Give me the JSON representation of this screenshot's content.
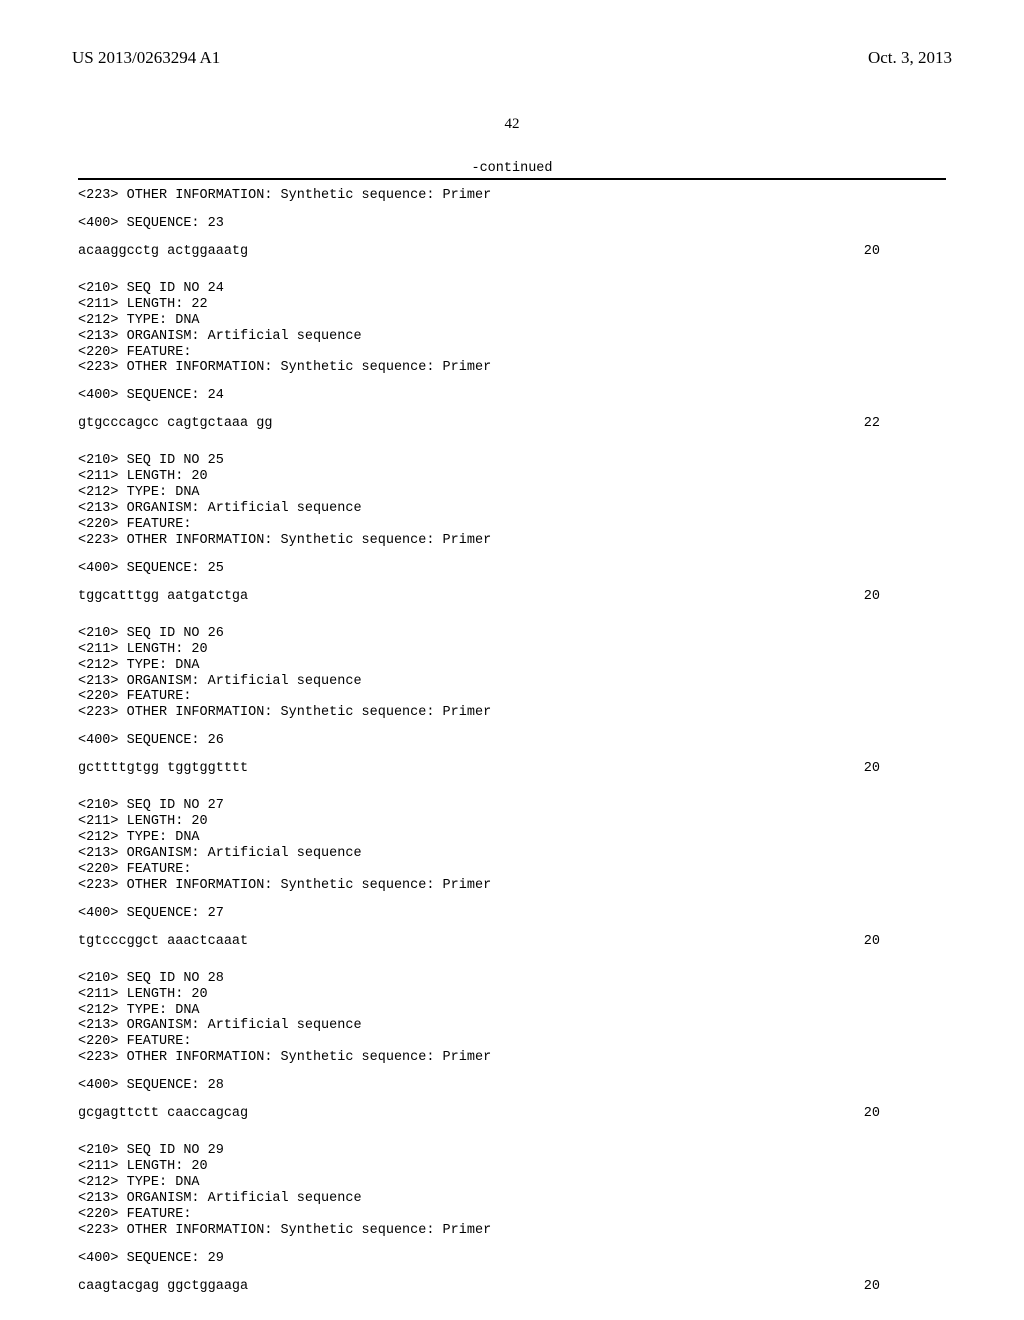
{
  "header": {
    "left": "US 2013/0263294 A1",
    "right": "Oct. 3, 2013"
  },
  "page_number": "42",
  "continued_label": "-continued",
  "intro_lines": [
    "<223> OTHER INFORMATION: Synthetic sequence: Primer",
    "",
    "<400> SEQUENCE: 23"
  ],
  "intro_seq": {
    "text": "acaaggcctg actggaaatg",
    "len": "20"
  },
  "entries": [
    {
      "meta": [
        "<210> SEQ ID NO 24",
        "<211> LENGTH: 22",
        "<212> TYPE: DNA",
        "<213> ORGANISM: Artificial sequence",
        "<220> FEATURE:",
        "<223> OTHER INFORMATION: Synthetic sequence: Primer"
      ],
      "seq_header": "<400> SEQUENCE: 24",
      "seq": {
        "text": "gtgcccagcc cagtgctaaa gg",
        "len": "22"
      }
    },
    {
      "meta": [
        "<210> SEQ ID NO 25",
        "<211> LENGTH: 20",
        "<212> TYPE: DNA",
        "<213> ORGANISM: Artificial sequence",
        "<220> FEATURE:",
        "<223> OTHER INFORMATION: Synthetic sequence: Primer"
      ],
      "seq_header": "<400> SEQUENCE: 25",
      "seq": {
        "text": "tggcatttgg aatgatctga",
        "len": "20"
      }
    },
    {
      "meta": [
        "<210> SEQ ID NO 26",
        "<211> LENGTH: 20",
        "<212> TYPE: DNA",
        "<213> ORGANISM: Artificial sequence",
        "<220> FEATURE:",
        "<223> OTHER INFORMATION: Synthetic sequence: Primer"
      ],
      "seq_header": "<400> SEQUENCE: 26",
      "seq": {
        "text": "gcttttgtgg tggtggtttt",
        "len": "20"
      }
    },
    {
      "meta": [
        "<210> SEQ ID NO 27",
        "<211> LENGTH: 20",
        "<212> TYPE: DNA",
        "<213> ORGANISM: Artificial sequence",
        "<220> FEATURE:",
        "<223> OTHER INFORMATION: Synthetic sequence: Primer"
      ],
      "seq_header": "<400> SEQUENCE: 27",
      "seq": {
        "text": "tgtcccggct aaactcaaat",
        "len": "20"
      }
    },
    {
      "meta": [
        "<210> SEQ ID NO 28",
        "<211> LENGTH: 20",
        "<212> TYPE: DNA",
        "<213> ORGANISM: Artificial sequence",
        "<220> FEATURE:",
        "<223> OTHER INFORMATION: Synthetic sequence: Primer"
      ],
      "seq_header": "<400> SEQUENCE: 28",
      "seq": {
        "text": "gcgagttctt caaccagcag",
        "len": "20"
      }
    },
    {
      "meta": [
        "<210> SEQ ID NO 29",
        "<211> LENGTH: 20",
        "<212> TYPE: DNA",
        "<213> ORGANISM: Artificial sequence",
        "<220> FEATURE:",
        "<223> OTHER INFORMATION: Synthetic sequence: Primer"
      ],
      "seq_header": "<400> SEQUENCE: 29",
      "seq": {
        "text": "caagtacgag ggctggaaga",
        "len": "20"
      }
    }
  ]
}
